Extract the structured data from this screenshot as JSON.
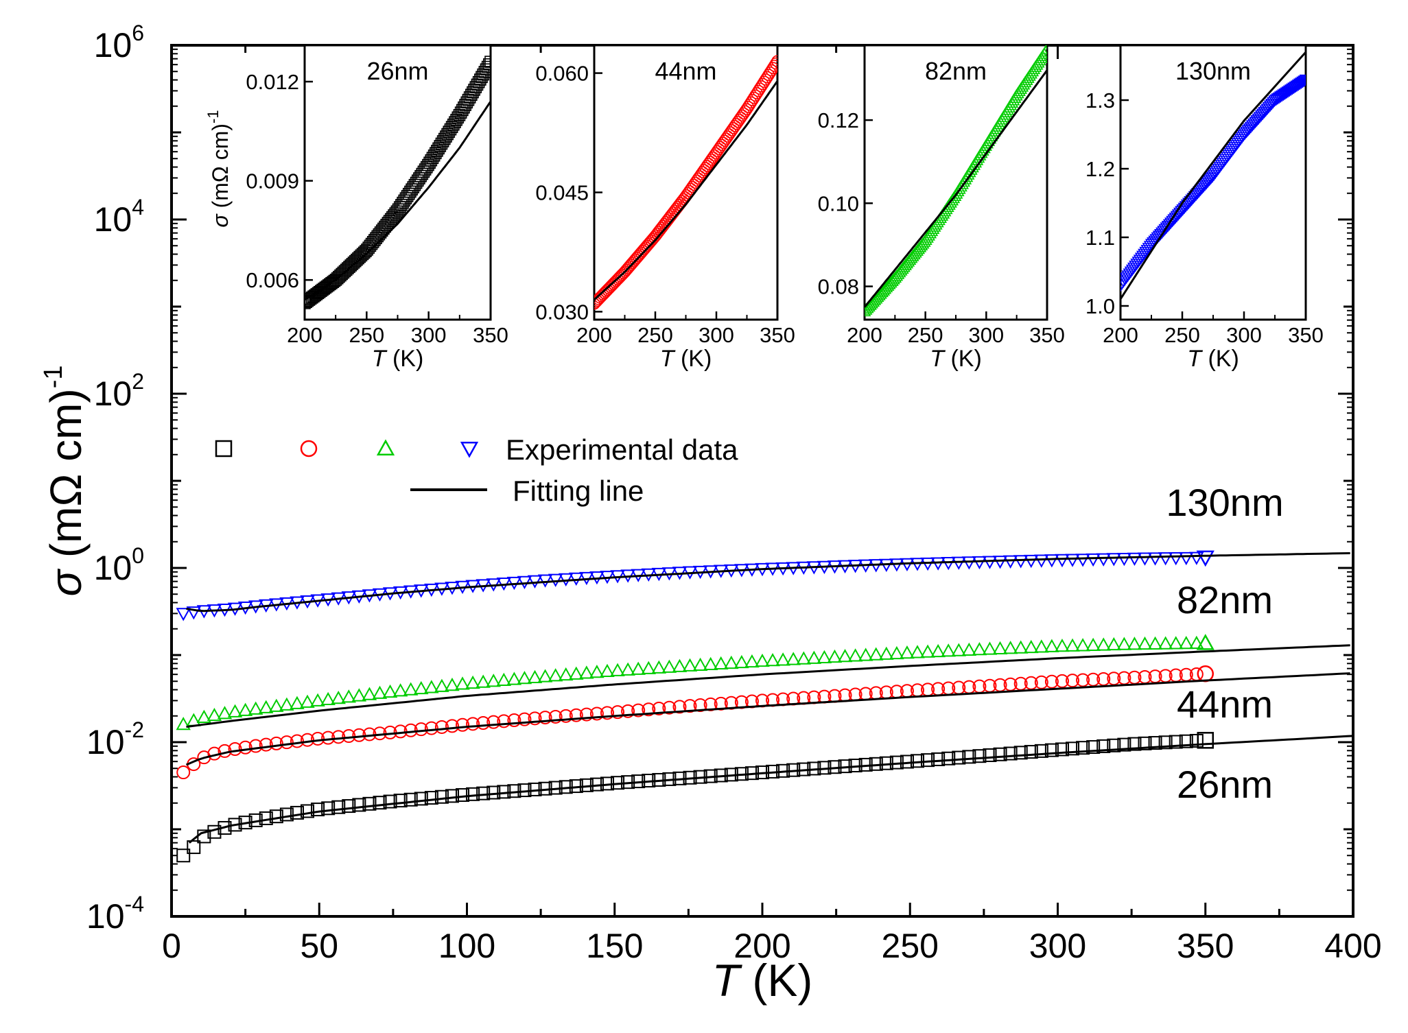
{
  "chart_data": {
    "type": "scatter",
    "main": {
      "x_label_italic": "T",
      "x_label_unit": " (K)",
      "y_label_italic": "σ",
      "y_label_unit": " (mΩ cm)",
      "y_label_exp": "-1",
      "xlim": [
        0,
        400
      ],
      "x_ticks": [
        0,
        50,
        100,
        150,
        200,
        250,
        300,
        350,
        400
      ],
      "x_tick_labels": [
        "0",
        "50",
        "100",
        "150",
        "200",
        "250",
        "300",
        "350",
        "400"
      ],
      "y_scale": "log",
      "y_log_range": [
        -4,
        6
      ],
      "y_tick_exponents": [
        -4,
        -2,
        0,
        2,
        4,
        6
      ],
      "y_tick_base": "10",
      "y_tick_sups": [
        "-4",
        "-2",
        "0",
        "2",
        "4",
        "6"
      ],
      "series": [
        {
          "name": "26nm",
          "label": "26nm",
          "color": "#000000",
          "marker": "square",
          "x": [
            4,
            6,
            8,
            10,
            15,
            20,
            30,
            40,
            50,
            75,
            100,
            125,
            150,
            175,
            200,
            225,
            250,
            275,
            300,
            325,
            350
          ],
          "y": [
            0.0005,
            0.00055,
            0.00065,
            0.0008,
            0.00095,
            0.0011,
            0.0013,
            0.0015,
            0.0017,
            0.0021,
            0.0025,
            0.0029,
            0.0034,
            0.0039,
            0.0045,
            0.0052,
            0.006,
            0.007,
            0.0082,
            0.0095,
            0.0105
          ],
          "fit_x": [
            6,
            10,
            20,
            30,
            50,
            100,
            150,
            200,
            250,
            300,
            350,
            400
          ],
          "fit_y": [
            0.0007,
            0.0009,
            0.0011,
            0.00125,
            0.0016,
            0.0024,
            0.0033,
            0.0044,
            0.0058,
            0.0075,
            0.0095,
            0.0118
          ]
        },
        {
          "name": "44nm",
          "label": "44nm",
          "color": "#ff0000",
          "marker": "circle",
          "x": [
            4,
            6,
            8,
            10,
            15,
            20,
            30,
            50,
            75,
            100,
            125,
            150,
            175,
            200,
            225,
            250,
            275,
            300,
            325,
            350
          ],
          "y": [
            0.0045,
            0.005,
            0.0058,
            0.0065,
            0.0075,
            0.0082,
            0.0092,
            0.011,
            0.013,
            0.016,
            0.019,
            0.022,
            0.026,
            0.03,
            0.034,
            0.039,
            0.044,
            0.05,
            0.055,
            0.061
          ],
          "fit_x": [
            5,
            10,
            20,
            50,
            100,
            150,
            200,
            250,
            300,
            350,
            400
          ],
          "fit_y": [
            0.0055,
            0.0065,
            0.0078,
            0.0105,
            0.015,
            0.02,
            0.026,
            0.033,
            0.041,
            0.051,
            0.062
          ]
        },
        {
          "name": "82nm",
          "label": "82nm",
          "color": "#00cc00",
          "marker": "triangle-up",
          "x": [
            4,
            10,
            20,
            50,
            75,
            100,
            125,
            150,
            175,
            200,
            225,
            250,
            275,
            300,
            325,
            350
          ],
          "y": [
            0.016,
            0.019,
            0.022,
            0.03,
            0.038,
            0.047,
            0.056,
            0.066,
            0.075,
            0.085,
            0.095,
            0.106,
            0.116,
            0.126,
            0.133,
            0.137
          ],
          "fit_x": [
            5,
            20,
            50,
            100,
            150,
            200,
            250,
            300,
            350,
            400
          ],
          "fit_y": [
            0.015,
            0.0175,
            0.023,
            0.034,
            0.046,
            0.06,
            0.075,
            0.092,
            0.11,
            0.13
          ]
        },
        {
          "name": "130nm",
          "label": "130nm",
          "color": "#0000ff",
          "marker": "triangle-down",
          "x": [
            4,
            10,
            20,
            30,
            50,
            75,
            100,
            125,
            150,
            175,
            200,
            225,
            250,
            275,
            300,
            325,
            350
          ],
          "y": [
            0.3,
            0.32,
            0.34,
            0.37,
            0.43,
            0.52,
            0.62,
            0.72,
            0.81,
            0.9,
            0.98,
            1.05,
            1.12,
            1.18,
            1.24,
            1.29,
            1.32
          ],
          "fit_x": [
            5,
            10,
            20,
            30,
            50,
            75,
            100,
            150,
            200,
            250,
            300,
            350,
            400
          ],
          "fit_y": [
            0.34,
            0.32,
            0.33,
            0.36,
            0.42,
            0.51,
            0.6,
            0.78,
            0.97,
            1.13,
            1.27,
            1.38,
            1.48
          ]
        }
      ],
      "legend": {
        "position": "upper-left",
        "experimental_label": "Experimental data",
        "fitting_label": "Fitting line"
      }
    },
    "insets": [
      {
        "title": "26nm",
        "color": "#000000",
        "marker": "square",
        "xlim": [
          200,
          350
        ],
        "ylim": [
          0.0048,
          0.0131
        ],
        "x_ticks": [
          200,
          250,
          300,
          350
        ],
        "x_tick_labels": [
          "200",
          "250",
          "300",
          "350"
        ],
        "y_ticks": [
          0.006,
          0.009,
          0.012
        ],
        "y_tick_labels": [
          "0.006",
          "0.009",
          "0.012"
        ],
        "x_label_italic": "T",
        "x_label_unit": " (K)",
        "y_label_italic": "σ",
        "y_label_unit": " (mΩ cm)",
        "y_label_exp": "-1",
        "data_x": [
          200,
          225,
          250,
          275,
          300,
          325,
          350
        ],
        "data_y": [
          0.0053,
          0.006,
          0.0069,
          0.0081,
          0.0095,
          0.011,
          0.0126
        ],
        "fit_x": [
          200,
          225,
          250,
          275,
          300,
          325,
          350
        ],
        "fit_y": [
          0.0054,
          0.006,
          0.0068,
          0.0077,
          0.0088,
          0.01,
          0.0114
        ]
      },
      {
        "title": "44nm",
        "color": "#ff0000",
        "marker": "circle",
        "xlim": [
          200,
          350
        ],
        "ylim": [
          0.029,
          0.0635
        ],
        "x_ticks": [
          200,
          250,
          300,
          350
        ],
        "x_tick_labels": [
          "200",
          "250",
          "300",
          "350"
        ],
        "y_ticks": [
          0.03,
          0.045,
          0.06
        ],
        "y_tick_labels": [
          "0.030",
          "0.045",
          "0.060"
        ],
        "x_label_italic": "T",
        "x_label_unit": " (K)",
        "data_x": [
          200,
          225,
          250,
          275,
          300,
          325,
          350
        ],
        "data_y": [
          0.031,
          0.035,
          0.0395,
          0.0445,
          0.05,
          0.0555,
          0.0615
        ],
        "fit_x": [
          200,
          225,
          250,
          275,
          300,
          325,
          350
        ],
        "fit_y": [
          0.0315,
          0.035,
          0.039,
          0.0435,
          0.0485,
          0.0535,
          0.059
        ]
      },
      {
        "title": "82nm",
        "color": "#00cc00",
        "marker": "triangle-up",
        "xlim": [
          200,
          350
        ],
        "ylim": [
          0.072,
          0.138
        ],
        "x_ticks": [
          200,
          250,
          300,
          350
        ],
        "x_tick_labels": [
          "200",
          "250",
          "300",
          "350"
        ],
        "y_ticks": [
          0.08,
          0.1,
          0.12
        ],
        "y_tick_labels": [
          "0.08",
          "0.10",
          "0.12"
        ],
        "x_label_italic": "T",
        "x_label_unit": " (K)",
        "data_x": [
          200,
          225,
          250,
          275,
          300,
          325,
          350
        ],
        "data_y": [
          0.074,
          0.082,
          0.091,
          0.102,
          0.114,
          0.126,
          0.137
        ],
        "fit_x": [
          200,
          225,
          250,
          275,
          300,
          325,
          350
        ],
        "fit_y": [
          0.075,
          0.084,
          0.093,
          0.102,
          0.112,
          0.122,
          0.132
        ]
      },
      {
        "title": "130nm",
        "color": "#0000ff",
        "marker": "triangle-down",
        "xlim": [
          200,
          350
        ],
        "ylim": [
          0.98,
          1.38
        ],
        "x_ticks": [
          200,
          250,
          300,
          350
        ],
        "x_tick_labels": [
          "200",
          "250",
          "300",
          "350"
        ],
        "y_ticks": [
          1.0,
          1.1,
          1.2,
          1.3
        ],
        "y_tick_labels": [
          "1.0",
          "1.1",
          "1.2",
          "1.3"
        ],
        "x_label_italic": "T",
        "x_label_unit": " (K)",
        "data_x": [
          200,
          225,
          250,
          275,
          300,
          325,
          350
        ],
        "data_y": [
          1.03,
          1.09,
          1.14,
          1.19,
          1.25,
          1.3,
          1.33
        ],
        "fit_x": [
          200,
          225,
          250,
          275,
          300,
          325,
          350
        ],
        "fit_y": [
          1.01,
          1.08,
          1.15,
          1.21,
          1.27,
          1.32,
          1.37
        ]
      }
    ]
  }
}
